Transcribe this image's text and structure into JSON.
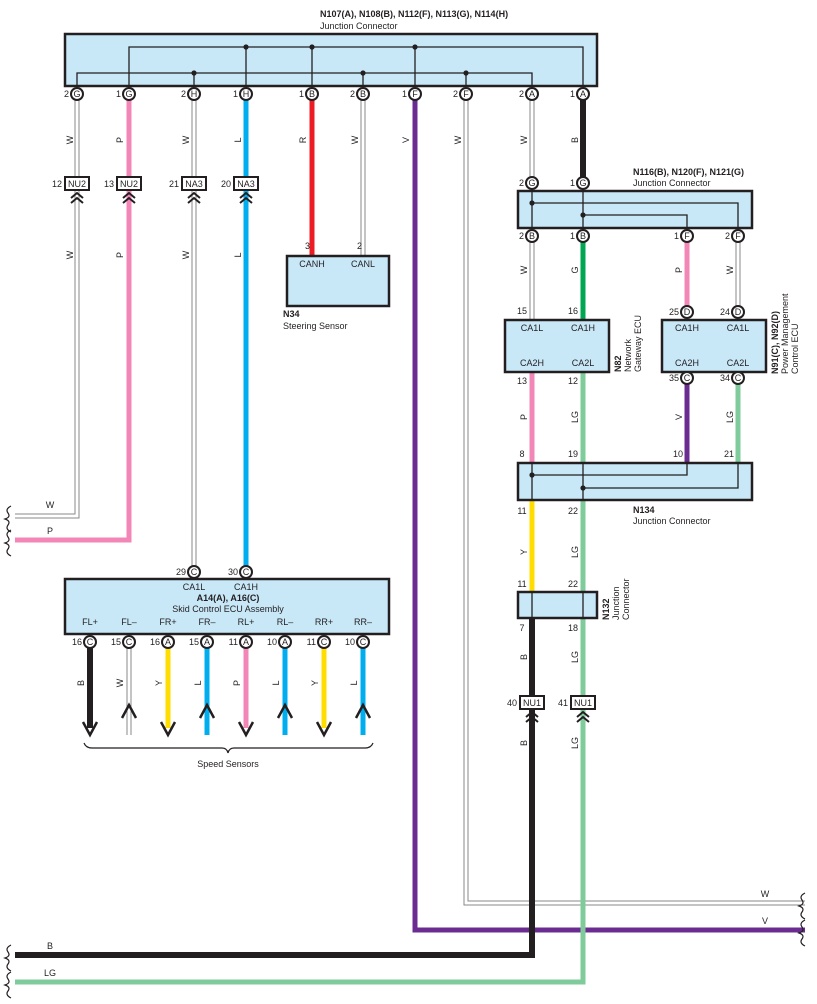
{
  "colors": {
    "W": "#ffffff",
    "P": "#f287b7",
    "L": "#00aeef",
    "R": "#ed1c24",
    "V": "#6a2c91",
    "B": "#231f20",
    "G": "#00a651",
    "LG": "#7fcb9b",
    "Y": "#ffdd00",
    "box_fill": "#c8e8f8"
  },
  "top_connector": {
    "title": "N107(A), N108(B), N112(F), N113(G), N114(H)",
    "subtitle": "Junction Connector",
    "pins": [
      {
        "num": "2",
        "letter": "G"
      },
      {
        "num": "1",
        "letter": "G"
      },
      {
        "num": "2",
        "letter": "H"
      },
      {
        "num": "1",
        "letter": "H"
      },
      {
        "num": "1",
        "letter": "B"
      },
      {
        "num": "2",
        "letter": "B"
      },
      {
        "num": "1",
        "letter": "F"
      },
      {
        "num": "2",
        "letter": "F"
      },
      {
        "num": "2",
        "letter": "A"
      },
      {
        "num": "1",
        "letter": "A"
      }
    ],
    "wire_colors": [
      "W",
      "P",
      "W",
      "L",
      "R",
      "W",
      "V",
      "W",
      "W",
      "B"
    ]
  },
  "inline_connectors": [
    {
      "num": "12",
      "name": "NU2"
    },
    {
      "num": "13",
      "name": "NU2"
    },
    {
      "num": "21",
      "name": "NA3"
    },
    {
      "num": "20",
      "name": "NA3"
    }
  ],
  "left_wire_colors": [
    "W",
    "P",
    "W",
    "L"
  ],
  "steering": {
    "title": "N34",
    "subtitle": "Steering Sensor",
    "pins": [
      {
        "num": "3",
        "name": "CANH"
      },
      {
        "num": "2",
        "name": "CANL"
      }
    ]
  },
  "n116": {
    "title": "N116(B), N120(F), N121(G)",
    "subtitle": "Junction Connector",
    "top_pins": [
      {
        "num": "2",
        "letter": "G"
      },
      {
        "num": "1",
        "letter": "G"
      }
    ],
    "bottom_pins": [
      {
        "num": "2",
        "letter": "B"
      },
      {
        "num": "1",
        "letter": "B"
      },
      {
        "num": "1",
        "letter": "F"
      },
      {
        "num": "2",
        "letter": "F"
      }
    ],
    "wire_colors": [
      "W",
      "G",
      "P",
      "W"
    ]
  },
  "n82": {
    "title": "N82",
    "subtitle_1": "Network",
    "subtitle_2": "Gateway ECU",
    "top_pins": [
      {
        "num": "15",
        "name": "CA1L"
      },
      {
        "num": "16",
        "name": "CA1H"
      }
    ],
    "bottom_pins": [
      {
        "num": "13",
        "name": "CA2H"
      },
      {
        "num": "12",
        "name": "CA2L"
      }
    ]
  },
  "n91": {
    "title": "N91(C), N92(D)",
    "subtitle_1": "Power Management",
    "subtitle_2": "Control ECU",
    "top_pins": [
      {
        "num": "25",
        "letter": "D",
        "name": "CA1H"
      },
      {
        "num": "24",
        "letter": "D",
        "name": "CA1L"
      }
    ],
    "bottom_pins": [
      {
        "num": "35",
        "letter": "C",
        "name": "CA2H"
      },
      {
        "num": "34",
        "letter": "C",
        "name": "CA2L"
      }
    ]
  },
  "ecu_to_n134_colors": [
    "P",
    "LG",
    "V",
    "LG"
  ],
  "n134": {
    "title": "N134",
    "subtitle": "Junction Connector",
    "top_pins": [
      "8",
      "19",
      "10",
      "21"
    ],
    "bottom_pins": [
      "11",
      "22"
    ],
    "wire_colors": [
      "Y",
      "LG"
    ]
  },
  "n132": {
    "title": "N132",
    "subtitle_1": "Junction",
    "subtitle_2": "Connector",
    "top_pins": [
      "11",
      "22"
    ],
    "bottom_pins": [
      "7",
      "18"
    ],
    "wire_colors": [
      "B",
      "LG"
    ]
  },
  "nu1": [
    {
      "num": "40",
      "name": "NU1"
    },
    {
      "num": "41",
      "name": "NU1"
    }
  ],
  "nu1_wire_colors": [
    "B",
    "LG"
  ],
  "skid": {
    "title": "A14(A), A16(C)",
    "subtitle": "Skid Control ECU Assembly",
    "top_pins": [
      {
        "num": "29",
        "letter": "C",
        "name": "CA1L"
      },
      {
        "num": "30",
        "letter": "C",
        "name": "CA1H"
      }
    ],
    "bottom_pins": [
      {
        "num": "16",
        "letter": "C",
        "name": "FL+",
        "color": "B",
        "arrow": "down"
      },
      {
        "num": "15",
        "letter": "C",
        "name": "FL–",
        "color": "W",
        "arrow": "up"
      },
      {
        "num": "16",
        "letter": "A",
        "name": "FR+",
        "color": "Y",
        "arrow": "down"
      },
      {
        "num": "15",
        "letter": "A",
        "name": "FR–",
        "color": "L",
        "arrow": "up"
      },
      {
        "num": "11",
        "letter": "A",
        "name": "RL+",
        "color": "P",
        "arrow": "down"
      },
      {
        "num": "10",
        "letter": "A",
        "name": "RL–",
        "color": "L",
        "arrow": "up"
      },
      {
        "num": "11",
        "letter": "C",
        "name": "RR+",
        "color": "Y",
        "arrow": "down"
      },
      {
        "num": "10",
        "letter": "C",
        "name": "RR–",
        "color": "L",
        "arrow": "up"
      }
    ],
    "group_label": "Speed Sensors"
  },
  "edge_labels": {
    "left": [
      "W",
      "P",
      "B",
      "LG"
    ],
    "right": [
      "W",
      "V"
    ]
  }
}
